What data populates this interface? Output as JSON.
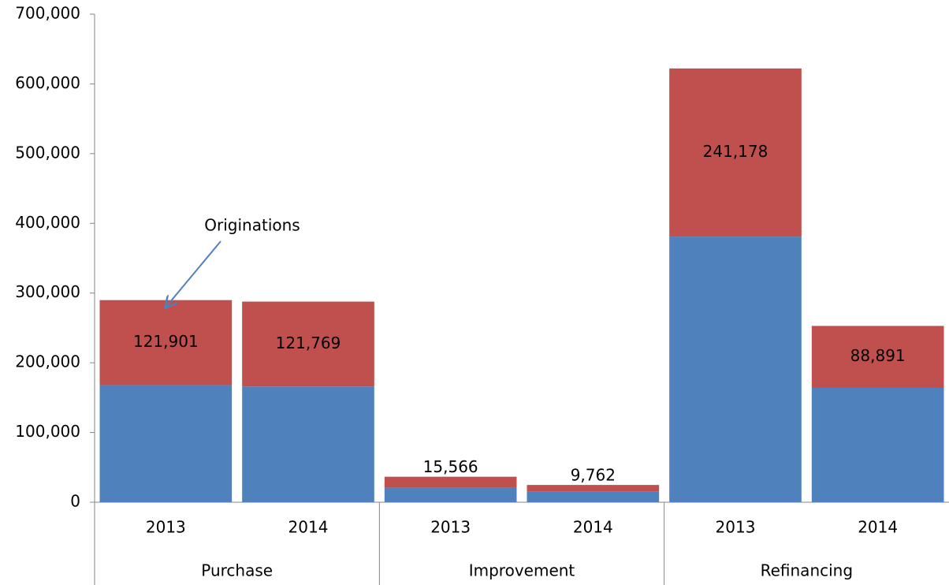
{
  "chart_data": {
    "type": "stacked_bar",
    "categories": [
      "2013",
      "2014",
      "2013",
      "2014",
      "2013",
      "2014"
    ],
    "groups": [
      "Purchase",
      "Improvement",
      "Refinancing"
    ],
    "series": [
      {
        "color": "#4f81bd",
        "values": [
          168000,
          166000,
          21000,
          15000,
          381000,
          164000
        ]
      },
      {
        "color": "#c0504d",
        "values": [
          121901,
          121769,
          15566,
          9762,
          241178,
          88891
        ],
        "value_labels": [
          "121,901",
          "121,769",
          "15,566",
          "9,762",
          "241,178",
          "88,891"
        ]
      }
    ],
    "annotation": "Originations",
    "ylim": [
      0,
      700000
    ],
    "yticks": [
      {
        "value": 0,
        "label": "0"
      },
      {
        "value": 100000,
        "label": "100,000"
      },
      {
        "value": 200000,
        "label": "200,000"
      },
      {
        "value": 300000,
        "label": "300,000"
      },
      {
        "value": 400000,
        "label": "400,000"
      },
      {
        "value": 500000,
        "label": "500,000"
      },
      {
        "value": 600000,
        "label": "600,000"
      },
      {
        "value": 700000,
        "label": "700,000"
      }
    ],
    "grid": false
  }
}
